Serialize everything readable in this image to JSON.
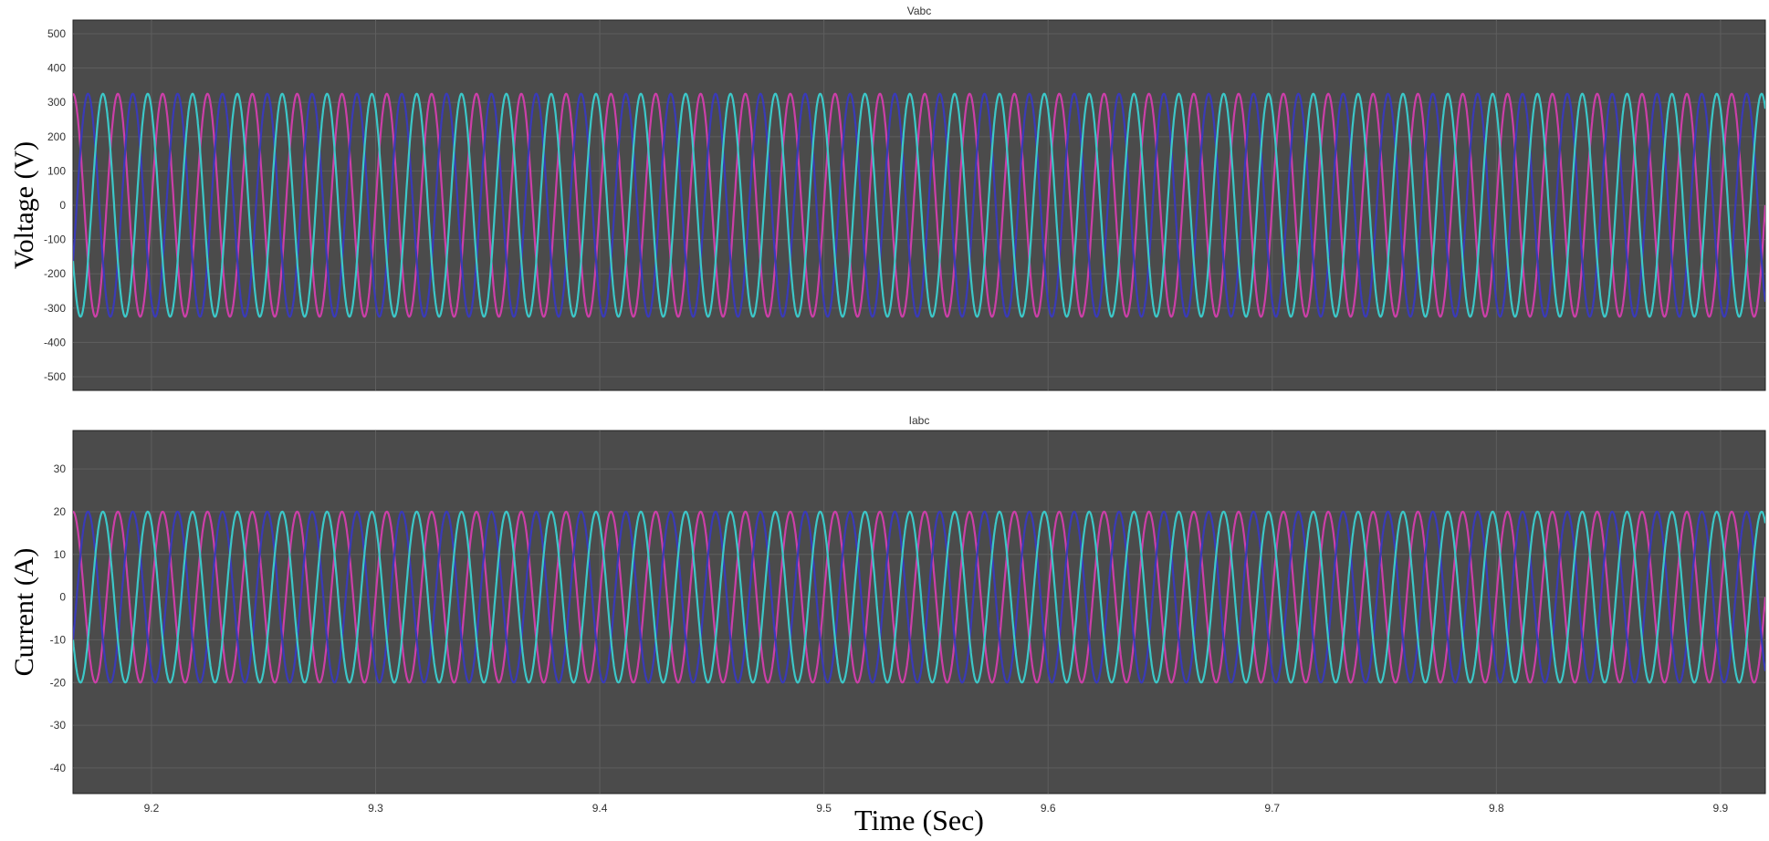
{
  "chart_data": [
    {
      "type": "line",
      "title": "Vabc",
      "xlabel": "",
      "ylabel": "Voltage (V)",
      "xlim": [
        9.165,
        9.92
      ],
      "ylim": [
        -540,
        540
      ],
      "yticks": [
        -500,
        -400,
        -300,
        -200,
        -100,
        0,
        100,
        200,
        300,
        400,
        500
      ],
      "xticks": [],
      "grid": true,
      "waveform": {
        "shape": "sine",
        "frequency_hz": 50,
        "amplitude": 325
      },
      "series": [
        {
          "phase_deg": 0,
          "color": "#cc3fa8"
        },
        {
          "phase_deg": -120,
          "color": "#3a3ab8"
        },
        {
          "phase_deg": 120,
          "color": "#3cc8c8"
        }
      ]
    },
    {
      "type": "line",
      "title": "Iabc",
      "xlabel": "Time (Sec)",
      "ylabel": "Current (A)",
      "xlim": [
        9.165,
        9.92
      ],
      "ylim": [
        -46,
        39
      ],
      "yticks": [
        -40,
        -30,
        -20,
        -10,
        0,
        10,
        20,
        30
      ],
      "xticks": [
        9.2,
        9.3,
        9.4,
        9.5,
        9.6,
        9.7,
        9.8,
        9.9
      ],
      "grid": true,
      "waveform": {
        "shape": "sine",
        "frequency_hz": 50,
        "amplitude": 20
      },
      "series": [
        {
          "phase_deg": 0,
          "color": "#cc3fa8"
        },
        {
          "phase_deg": -120,
          "color": "#3a3ab8"
        },
        {
          "phase_deg": 120,
          "color": "#3cc8c8"
        }
      ]
    }
  ],
  "colors": {
    "plot_background": "#4b4b4b",
    "grid": "#5e5e5e"
  }
}
